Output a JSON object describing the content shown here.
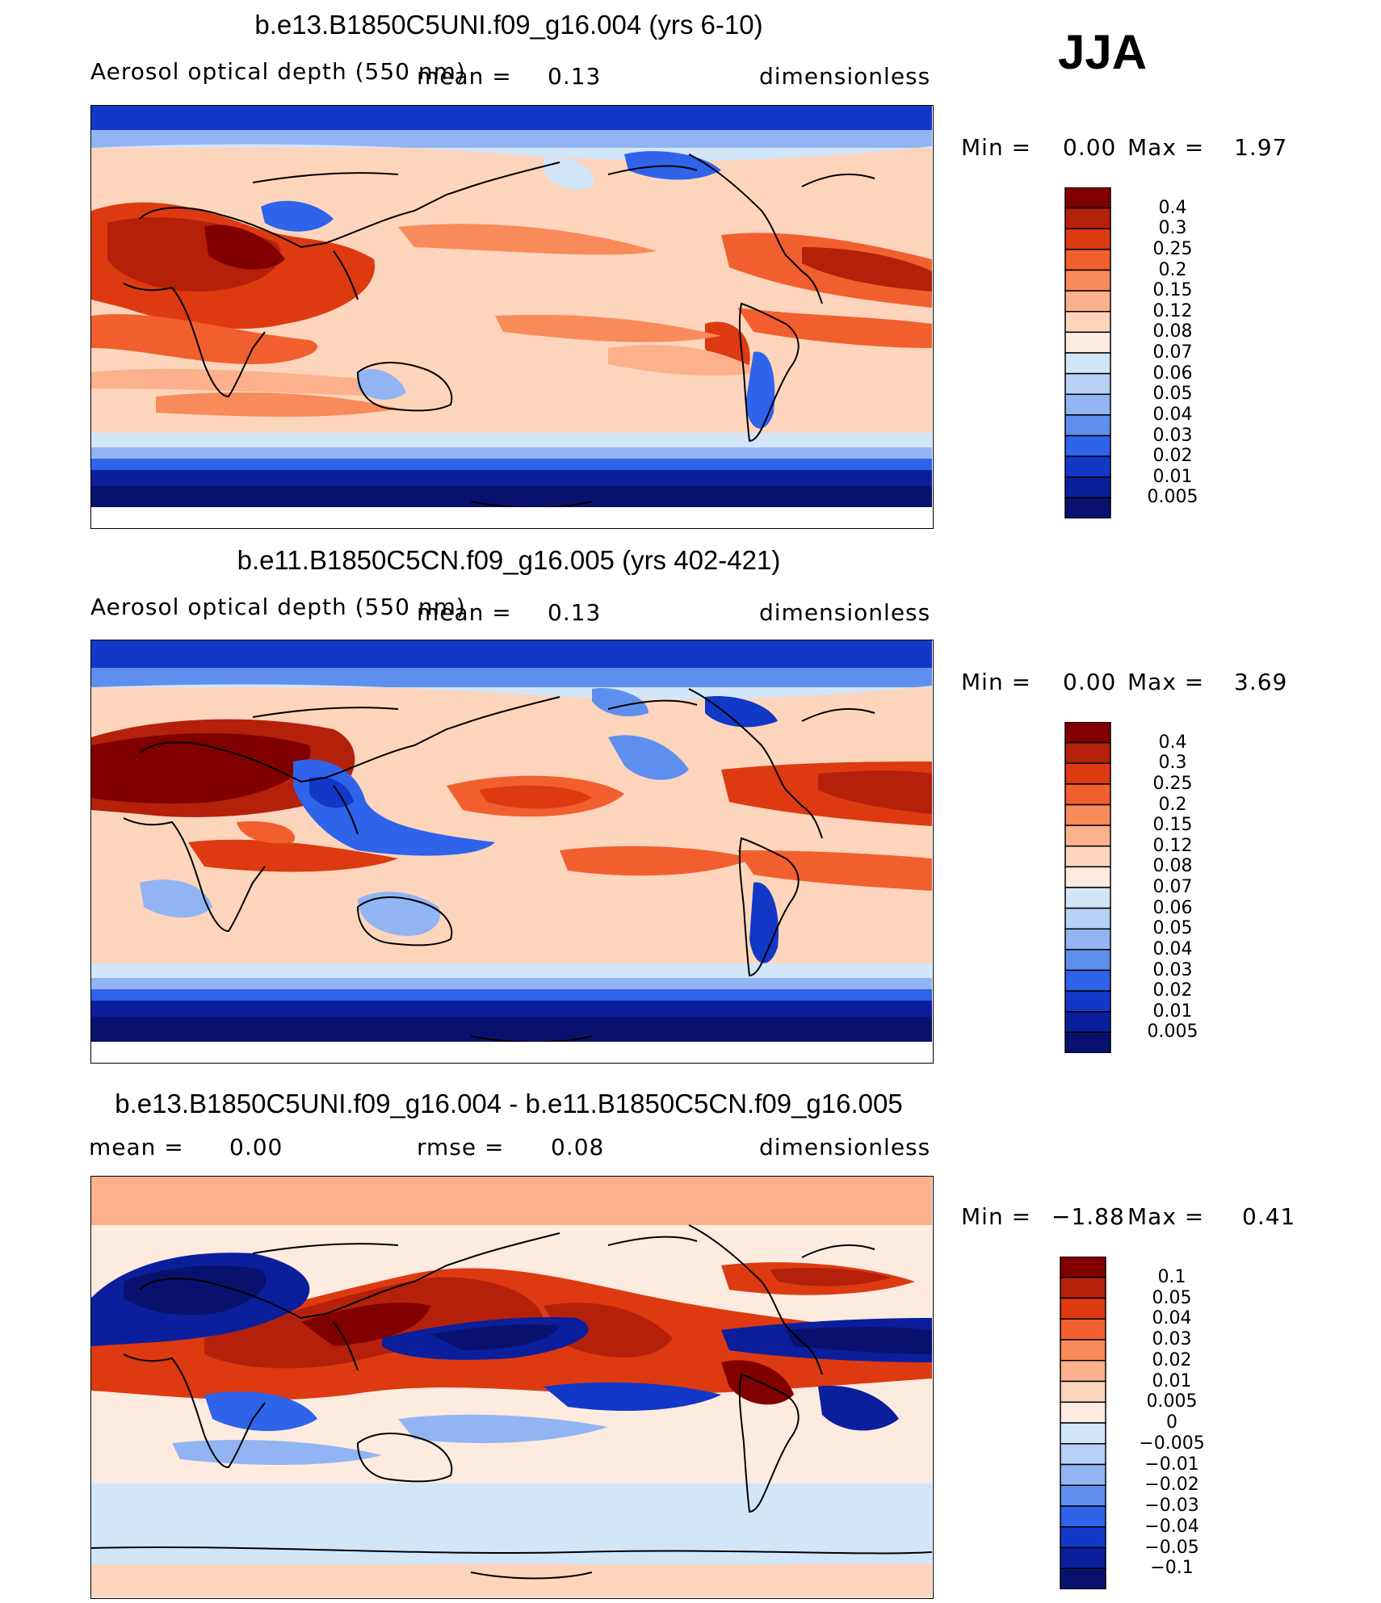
{
  "season": "JJA",
  "chart_data": [
    {
      "type": "heatmap",
      "title": "b.e13.B1850C5UNI.f09_g16.004 (yrs 6-10)",
      "variable": "Aerosol optical depth (550 nm)",
      "mean_label": "mean =",
      "mean_value": "0.13",
      "units": "dimensionless",
      "min_label": "Min =",
      "min_value": "0.00",
      "max_label": "Max =",
      "max_value": "1.97",
      "colorbar_levels": [
        "0.4",
        "0.3",
        "0.25",
        "0.2",
        "0.15",
        "0.12",
        "0.08",
        "0.07",
        "0.06",
        "0.05",
        "0.04",
        "0.03",
        "0.02",
        "0.01",
        "0.005"
      ],
      "colorbar_colors": [
        "#800000",
        "#b5200a",
        "#dd3a12",
        "#f25f2e",
        "#f98a5a",
        "#fcb18c",
        "#fdd5bd",
        "#fdebe0",
        "#d2e6fa",
        "#b7d1f7",
        "#92b4f2",
        "#5f8fee",
        "#2f63ea",
        "#1238c8",
        "#0b1f9c",
        "#08126e"
      ]
    },
    {
      "type": "heatmap",
      "title": "b.e11.B1850C5CN.f09_g16.005 (yrs 402-421)",
      "variable": "Aerosol optical depth (550 nm)",
      "mean_label": "mean =",
      "mean_value": "0.13",
      "units": "dimensionless",
      "min_label": "Min =",
      "min_value": "0.00",
      "max_label": "Max =",
      "max_value": "3.69",
      "colorbar_levels": [
        "0.4",
        "0.3",
        "0.25",
        "0.2",
        "0.15",
        "0.12",
        "0.08",
        "0.07",
        "0.06",
        "0.05",
        "0.04",
        "0.03",
        "0.02",
        "0.01",
        "0.005"
      ],
      "colorbar_colors": [
        "#800000",
        "#b5200a",
        "#dd3a12",
        "#f25f2e",
        "#f98a5a",
        "#fcb18c",
        "#fdd5bd",
        "#fdebe0",
        "#d2e6fa",
        "#b7d1f7",
        "#92b4f2",
        "#5f8fee",
        "#2f63ea",
        "#1238c8",
        "#0b1f9c",
        "#08126e"
      ]
    },
    {
      "type": "heatmap",
      "title": "b.e13.B1850C5UNI.f09_g16.004 - b.e11.B1850C5CN.f09_g16.005",
      "mean_label": "mean =",
      "mean_value": "0.00",
      "rmse_label": "rmse =",
      "rmse_value": "0.08",
      "units": "dimensionless",
      "min_label": "Min =",
      "min_value": "−1.88",
      "max_label": "Max =",
      "max_value": "0.41",
      "colorbar_levels": [
        "0.1",
        "0.05",
        "0.04",
        "0.03",
        "0.02",
        "0.01",
        "0.005",
        "0",
        "−0.005",
        "−0.01",
        "−0.02",
        "−0.03",
        "−0.04",
        "−0.05",
        "−0.1"
      ],
      "colorbar_colors": [
        "#800000",
        "#b5200a",
        "#dd3a12",
        "#f25f2e",
        "#f98a5a",
        "#fcb18c",
        "#fdd5bd",
        "#fdebe0",
        "#d2e6fa",
        "#b7d1f7",
        "#92b4f2",
        "#5f8fee",
        "#2f63ea",
        "#1238c8",
        "#0b1f9c",
        "#08126e"
      ]
    }
  ]
}
